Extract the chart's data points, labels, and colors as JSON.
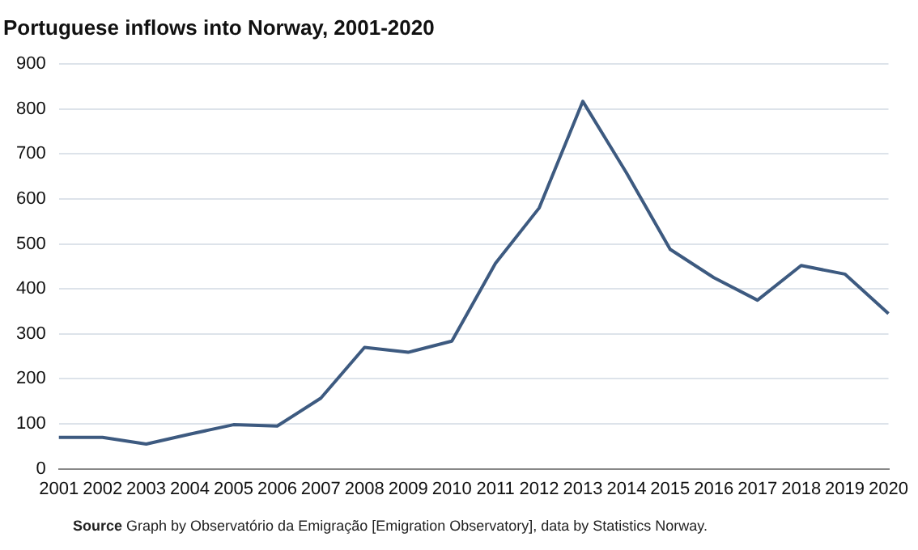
{
  "chart_data": {
    "type": "line",
    "title": "Portuguese inflows into Norway, 2001-2020",
    "categories": [
      "2001",
      "2002",
      "2003",
      "2004",
      "2005",
      "2006",
      "2007",
      "2008",
      "2009",
      "2010",
      "2011",
      "2012",
      "2013",
      "2014",
      "2015",
      "2016",
      "2017",
      "2018",
      "2019",
      "2020"
    ],
    "series": [
      {
        "color": "#3d5a80",
        "values": [
          70,
          70,
          55,
          77,
          98,
          95,
          157,
          270,
          259,
          284,
          457,
          580,
          817,
          658,
          488,
          425,
          375,
          452,
          433,
          345
        ]
      }
    ],
    "ylim": [
      0,
      900
    ],
    "yticks": [
      0,
      100,
      200,
      300,
      400,
      500,
      600,
      700,
      800,
      900
    ],
    "grid": "y",
    "legend": false,
    "marker": "none",
    "line_style": "solid",
    "annotations": [
      "Source Graph by Observatório da Emigração [Emigration Observatory], data by Statistics Norway."
    ]
  }
}
